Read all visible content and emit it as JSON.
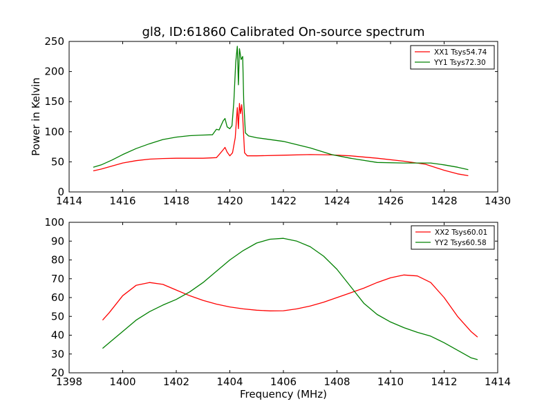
{
  "chart_data": [
    {
      "type": "line",
      "title": "gl8, ID:61860 Calibrated On-source spectrum",
      "xlabel": "",
      "ylabel": "Power in Kelvin",
      "xlim": [
        1414,
        1430
      ],
      "ylim": [
        0,
        250
      ],
      "xticks": [
        "1414",
        "1416",
        "1418",
        "1420",
        "1422",
        "1424",
        "1426",
        "1428",
        "1430"
      ],
      "yticks": [
        "0",
        "50",
        "100",
        "150",
        "200",
        "250"
      ],
      "legend_placement": "top-right",
      "grid": false,
      "series": [
        {
          "name": "XX1 Tsys54.74",
          "color": "#ff0000",
          "points": [
            [
              1414.9,
              35
            ],
            [
              1415.2,
              38
            ],
            [
              1415.6,
              43
            ],
            [
              1416,
              48
            ],
            [
              1416.5,
              52
            ],
            [
              1417,
              54.5
            ],
            [
              1417.5,
              55.5
            ],
            [
              1418,
              56
            ],
            [
              1418.5,
              56
            ],
            [
              1419,
              56
            ],
            [
              1419.3,
              56.5
            ],
            [
              1419.5,
              57
            ],
            [
              1419.6,
              62
            ],
            [
              1419.75,
              70
            ],
            [
              1419.82,
              74
            ],
            [
              1419.9,
              66
            ],
            [
              1420.0,
              60
            ],
            [
              1420.1,
              65
            ],
            [
              1420.2,
              90
            ],
            [
              1420.28,
              140
            ],
            [
              1420.32,
              105
            ],
            [
              1420.36,
              147
            ],
            [
              1420.4,
              130
            ],
            [
              1420.44,
              145
            ],
            [
              1420.48,
              125
            ],
            [
              1420.55,
              65
            ],
            [
              1420.65,
              60
            ],
            [
              1421,
              60
            ],
            [
              1422,
              61
            ],
            [
              1423,
              62
            ],
            [
              1423.8,
              61.5
            ],
            [
              1424.5,
              60
            ],
            [
              1425.5,
              56
            ],
            [
              1426.5,
              51
            ],
            [
              1427.3,
              46
            ],
            [
              1428,
              36
            ],
            [
              1428.5,
              30
            ],
            [
              1428.9,
              27
            ]
          ]
        },
        {
          "name": "YY1 Tsys72.30",
          "color": "#008000",
          "points": [
            [
              1414.9,
              41
            ],
            [
              1415.2,
              45
            ],
            [
              1415.6,
              53
            ],
            [
              1416,
              62
            ],
            [
              1416.5,
              72
            ],
            [
              1417,
              80
            ],
            [
              1417.5,
              87
            ],
            [
              1418,
              91
            ],
            [
              1418.5,
              93.5
            ],
            [
              1419,
              94.5
            ],
            [
              1419.35,
              95
            ],
            [
              1419.5,
              104
            ],
            [
              1419.6,
              103
            ],
            [
              1419.75,
              118
            ],
            [
              1419.82,
              122
            ],
            [
              1419.9,
              108
            ],
            [
              1420.0,
              105
            ],
            [
              1420.08,
              110
            ],
            [
              1420.15,
              150
            ],
            [
              1420.22,
              215
            ],
            [
              1420.28,
              242
            ],
            [
              1420.32,
              178
            ],
            [
              1420.36,
              238
            ],
            [
              1420.42,
              220
            ],
            [
              1420.48,
              225
            ],
            [
              1420.52,
              150
            ],
            [
              1420.58,
              98
            ],
            [
              1420.7,
              93
            ],
            [
              1421,
              90
            ],
            [
              1422,
              84
            ],
            [
              1423,
              73
            ],
            [
              1423.8,
              62
            ],
            [
              1424.5,
              56
            ],
            [
              1425.5,
              49
            ],
            [
              1426.5,
              48
            ],
            [
              1427.5,
              48
            ],
            [
              1428,
              45
            ],
            [
              1428.5,
              41
            ],
            [
              1428.9,
              37
            ]
          ]
        }
      ]
    },
    {
      "type": "line",
      "title": "",
      "xlabel": "Frequency (MHz)",
      "ylabel": "",
      "xlim": [
        1398,
        1414
      ],
      "ylim": [
        20,
        100
      ],
      "xticks": [
        "1398",
        "1400",
        "1402",
        "1404",
        "1406",
        "1408",
        "1410",
        "1412",
        "1414"
      ],
      "yticks": [
        "20",
        "30",
        "40",
        "50",
        "60",
        "70",
        "80",
        "90",
        "100"
      ],
      "legend_placement": "top-right",
      "grid": false,
      "series": [
        {
          "name": "XX2 Tsys60.01",
          "color": "#ff0000",
          "points": [
            [
              1399.25,
              48
            ],
            [
              1399.5,
              52
            ],
            [
              1400,
              61
            ],
            [
              1400.5,
              66.5
            ],
            [
              1401,
              68
            ],
            [
              1401.5,
              67
            ],
            [
              1402,
              64
            ],
            [
              1402.5,
              61
            ],
            [
              1403,
              58.5
            ],
            [
              1403.5,
              56.5
            ],
            [
              1404,
              55
            ],
            [
              1404.5,
              54
            ],
            [
              1405,
              53.3
            ],
            [
              1405.5,
              52.9
            ],
            [
              1406,
              53
            ],
            [
              1406.5,
              54
            ],
            [
              1407,
              55.5
            ],
            [
              1407.5,
              57.5
            ],
            [
              1408,
              60
            ],
            [
              1408.5,
              62.5
            ],
            [
              1409,
              65
            ],
            [
              1409.5,
              68
            ],
            [
              1410,
              70.5
            ],
            [
              1410.5,
              72
            ],
            [
              1411,
              71.5
            ],
            [
              1411.5,
              68
            ],
            [
              1412,
              60
            ],
            [
              1412.5,
              50
            ],
            [
              1413,
              42
            ],
            [
              1413.25,
              39
            ]
          ]
        },
        {
          "name": "YY2 Tsys60.58",
          "color": "#008000",
          "points": [
            [
              1399.25,
              33
            ],
            [
              1399.5,
              36
            ],
            [
              1400,
              42
            ],
            [
              1400.5,
              48
            ],
            [
              1401,
              52.5
            ],
            [
              1401.5,
              56
            ],
            [
              1402,
              59
            ],
            [
              1402.5,
              63
            ],
            [
              1403,
              68
            ],
            [
              1403.5,
              74
            ],
            [
              1404,
              80
            ],
            [
              1404.5,
              85
            ],
            [
              1405,
              89
            ],
            [
              1405.5,
              91
            ],
            [
              1406,
              91.5
            ],
            [
              1406.5,
              90
            ],
            [
              1407,
              87
            ],
            [
              1407.5,
              82
            ],
            [
              1408,
              75
            ],
            [
              1408.5,
              66
            ],
            [
              1409,
              57
            ],
            [
              1409.5,
              51
            ],
            [
              1410,
              47
            ],
            [
              1410.5,
              44
            ],
            [
              1411,
              41.5
            ],
            [
              1411.5,
              39.5
            ],
            [
              1412,
              36
            ],
            [
              1412.5,
              32
            ],
            [
              1413,
              28
            ],
            [
              1413.25,
              27
            ]
          ]
        }
      ]
    }
  ]
}
